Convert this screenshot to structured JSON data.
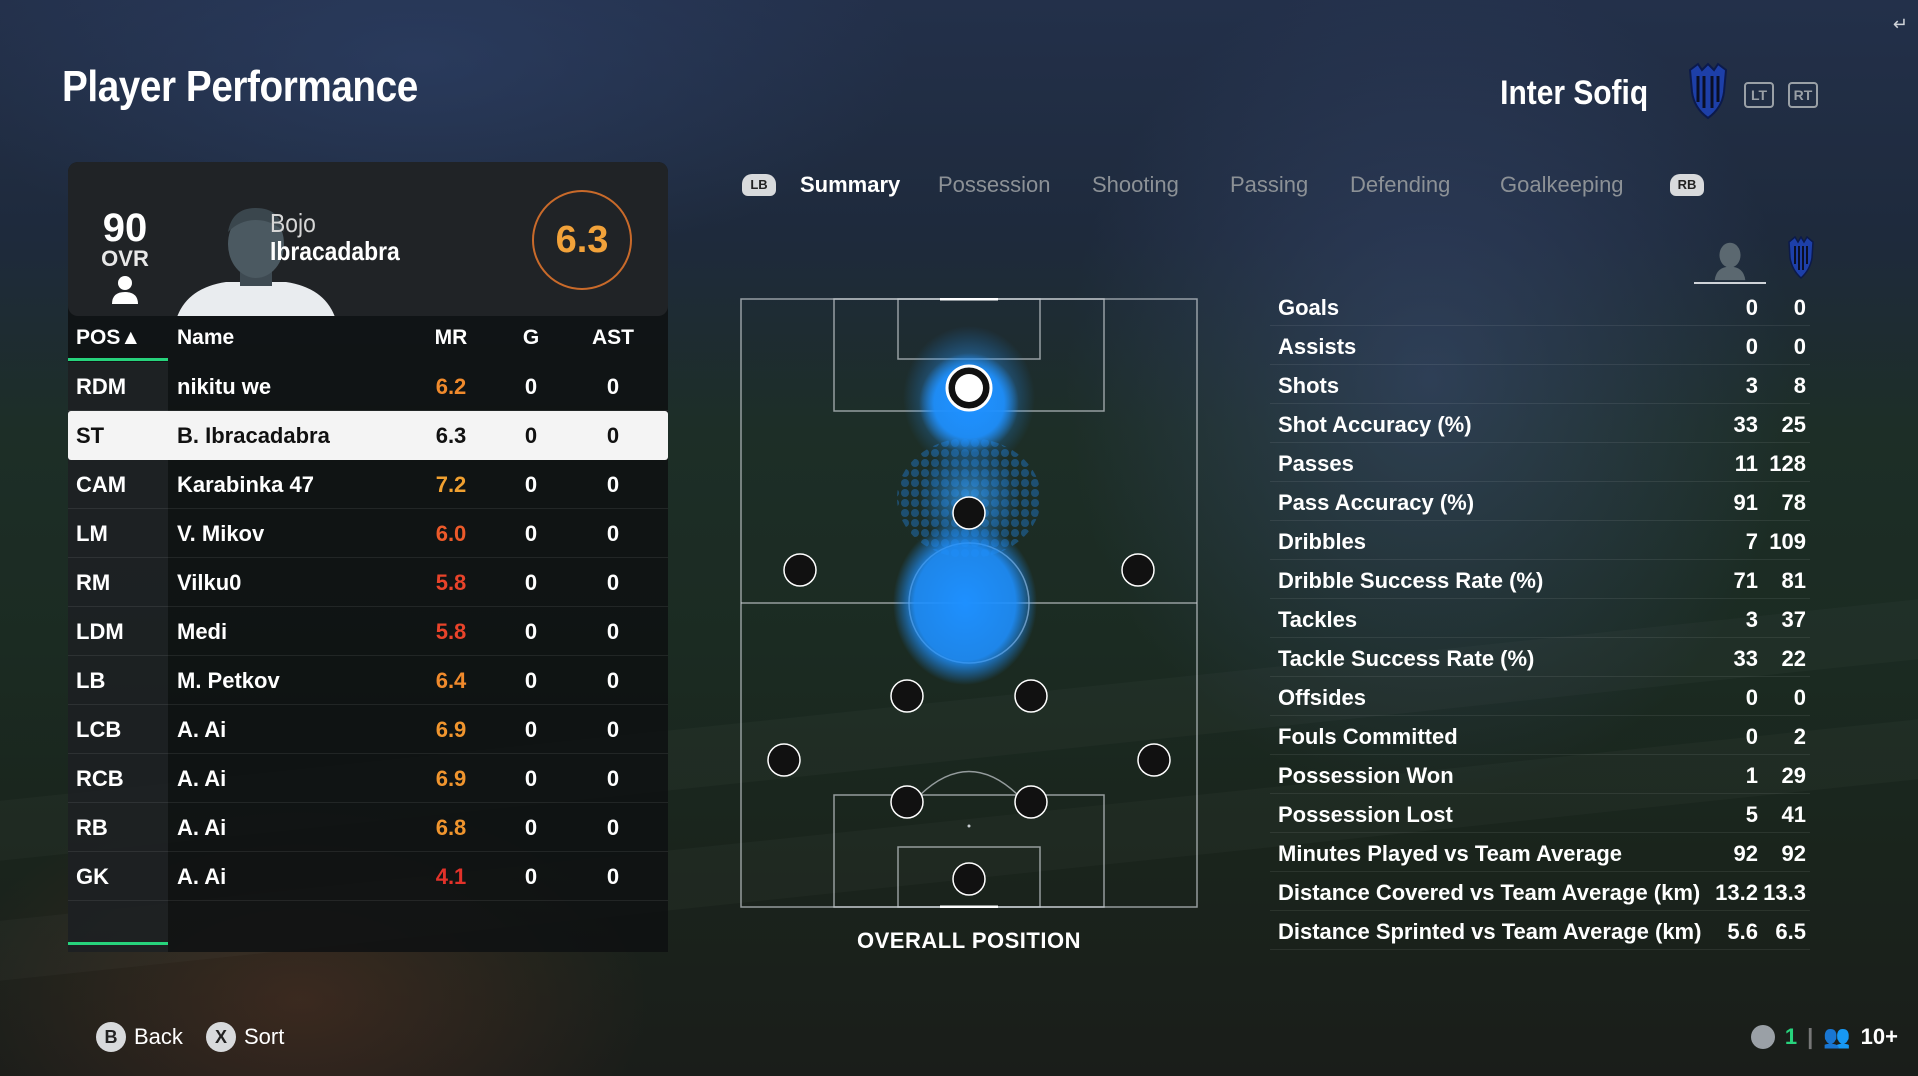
{
  "header": {
    "title": "Player Performance",
    "team_name": "Inter Sofiq",
    "lt_label": "LT",
    "rt_label": "RT"
  },
  "player_card": {
    "ovr": "90",
    "ovr_label": "OVR",
    "first_name": "Bojo",
    "last_name": "Ibracadabra",
    "match_rating": "6.3"
  },
  "table": {
    "headers": {
      "pos": "POS▲",
      "name": "Name",
      "mr": "MR",
      "g": "G",
      "ast": "AST"
    },
    "rows": [
      {
        "pos": "RDM",
        "name": "nikitu we",
        "mr": "6.2",
        "g": "0",
        "ast": "0",
        "mr_color": "#f08a2c"
      },
      {
        "pos": "ST",
        "name": "B. Ibracadabra",
        "mr": "6.3",
        "g": "0",
        "ast": "0",
        "mr_color": "#111111"
      },
      {
        "pos": "CAM",
        "name": "Karabinka 47",
        "mr": "7.2",
        "g": "0",
        "ast": "0",
        "mr_color": "#f0a030"
      },
      {
        "pos": "LM",
        "name": "V. Mikov",
        "mr": "6.0",
        "g": "0",
        "ast": "0",
        "mr_color": "#ec5a2a"
      },
      {
        "pos": "RM",
        "name": "Vilku0",
        "mr": "5.8",
        "g": "0",
        "ast": "0",
        "mr_color": "#e8432a"
      },
      {
        "pos": "LDM",
        "name": "Medi",
        "mr": "5.8",
        "g": "0",
        "ast": "0",
        "mr_color": "#e8432a"
      },
      {
        "pos": "LB",
        "name": "M. Petkov",
        "mr": "6.4",
        "g": "0",
        "ast": "0",
        "mr_color": "#f08a2c"
      },
      {
        "pos": "LCB",
        "name": "A. Ai",
        "mr": "6.9",
        "g": "0",
        "ast": "0",
        "mr_color": "#f0952e"
      },
      {
        "pos": "RCB",
        "name": "A. Ai",
        "mr": "6.9",
        "g": "0",
        "ast": "0",
        "mr_color": "#f0952e"
      },
      {
        "pos": "RB",
        "name": "A. Ai",
        "mr": "6.8",
        "g": "0",
        "ast": "0",
        "mr_color": "#f0952e"
      },
      {
        "pos": "GK",
        "name": "A. Ai",
        "mr": "4.1",
        "g": "0",
        "ast": "0",
        "mr_color": "#e2322a"
      }
    ]
  },
  "tabs": {
    "lb": "LB",
    "rb": "RB",
    "items": [
      "Summary",
      "Possession",
      "Shooting",
      "Passing",
      "Defending",
      "Goalkeeping"
    ],
    "active": "Summary"
  },
  "pitch": {
    "caption": "OVERALL POSITION",
    "heatmap_color": "#1e90ff"
  },
  "stats": [
    {
      "label": "Goals",
      "player": "0",
      "team": "0"
    },
    {
      "label": "Assists",
      "player": "0",
      "team": "0"
    },
    {
      "label": "Shots",
      "player": "3",
      "team": "8"
    },
    {
      "label": "Shot Accuracy (%)",
      "player": "33",
      "team": "25"
    },
    {
      "label": "Passes",
      "player": "11",
      "team": "128"
    },
    {
      "label": "Pass Accuracy (%)",
      "player": "91",
      "team": "78"
    },
    {
      "label": "Dribbles",
      "player": "7",
      "team": "109"
    },
    {
      "label": "Dribble Success Rate (%)",
      "player": "71",
      "team": "81"
    },
    {
      "label": "Tackles",
      "player": "3",
      "team": "37"
    },
    {
      "label": "Tackle Success Rate (%)",
      "player": "33",
      "team": "22"
    },
    {
      "label": "Offsides",
      "player": "0",
      "team": "0"
    },
    {
      "label": "Fouls Committed",
      "player": "0",
      "team": "2"
    },
    {
      "label": "Possession Won",
      "player": "1",
      "team": "29"
    },
    {
      "label": "Possession Lost",
      "player": "5",
      "team": "41"
    },
    {
      "label": "Minutes Played vs Team Average",
      "player": "92",
      "team": "92"
    },
    {
      "label": "Distance Covered vs Team Average (km)",
      "player": "13.2",
      "team": "13.3"
    },
    {
      "label": "Distance Sprinted vs Team Average (km)",
      "player": "5.6",
      "team": "6.5"
    }
  ],
  "footer": {
    "back_key": "B",
    "back_label": "Back",
    "sort_key": "X",
    "sort_label": "Sort",
    "signal_count": "1",
    "players_count": "10+"
  },
  "colors": {
    "accent_green": "#27d37c",
    "rating_orange": "#f2a23a"
  }
}
